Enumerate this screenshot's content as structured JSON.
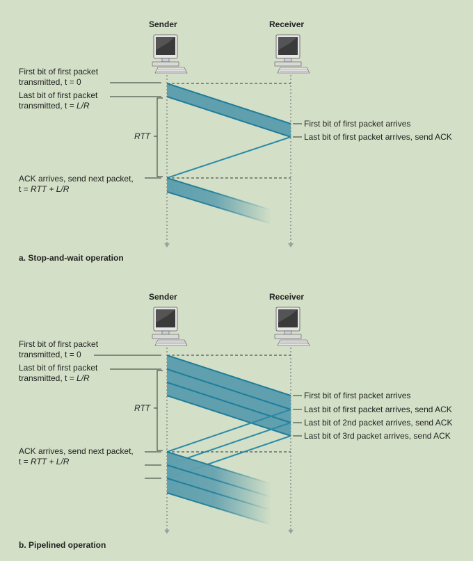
{
  "panel_a": {
    "sender": "Sender",
    "receiver": "Receiver",
    "first_bit_sent_1": "First bit of first packet",
    "first_bit_sent_2": "transmitted, t = 0",
    "last_bit_sent_1": "Last bit of first packet",
    "last_bit_sent_2": "transmitted, t = ",
    "last_bit_sent_2_var": "L/R",
    "rtt": "RTT",
    "ack_arrives_1": "ACK arrives, send next packet,",
    "ack_arrives_2a": "t = ",
    "ack_arrives_2b": "RTT + L/R",
    "recv_first": "First bit of first packet arrives",
    "recv_last": "Last bit of first packet arrives, send ACK",
    "caption": "a. Stop-and-wait operation"
  },
  "panel_b": {
    "sender": "Sender",
    "receiver": "Receiver",
    "first_bit_sent_1": "First bit of first packet",
    "first_bit_sent_2": "transmitted, t = 0",
    "last_bit_sent_1": "Last bit of first packet",
    "last_bit_sent_2": "transmitted, t = ",
    "last_bit_sent_2_var": "L/R",
    "rtt": "RTT",
    "ack_arrives_1": "ACK arrives, send next packet,",
    "ack_arrives_2a": "t = ",
    "ack_arrives_2b": "RTT + L/R",
    "recv_first": "First bit of first packet arrives",
    "recv_last1": "Last bit of first packet arrives, send ACK",
    "recv_last2": "Last bit of 2nd packet arrives, send ACK",
    "recv_last3": "Last bit of 3rd packet arrives, send ACK",
    "caption": "b. Pipelined operation"
  },
  "colors": {
    "background": "#d3dfc6",
    "packet_fill": "#5f9fae",
    "packet_edge": "#1f7d9a",
    "ack_line": "#2a8aa8",
    "timeline": "#9aa39a"
  }
}
